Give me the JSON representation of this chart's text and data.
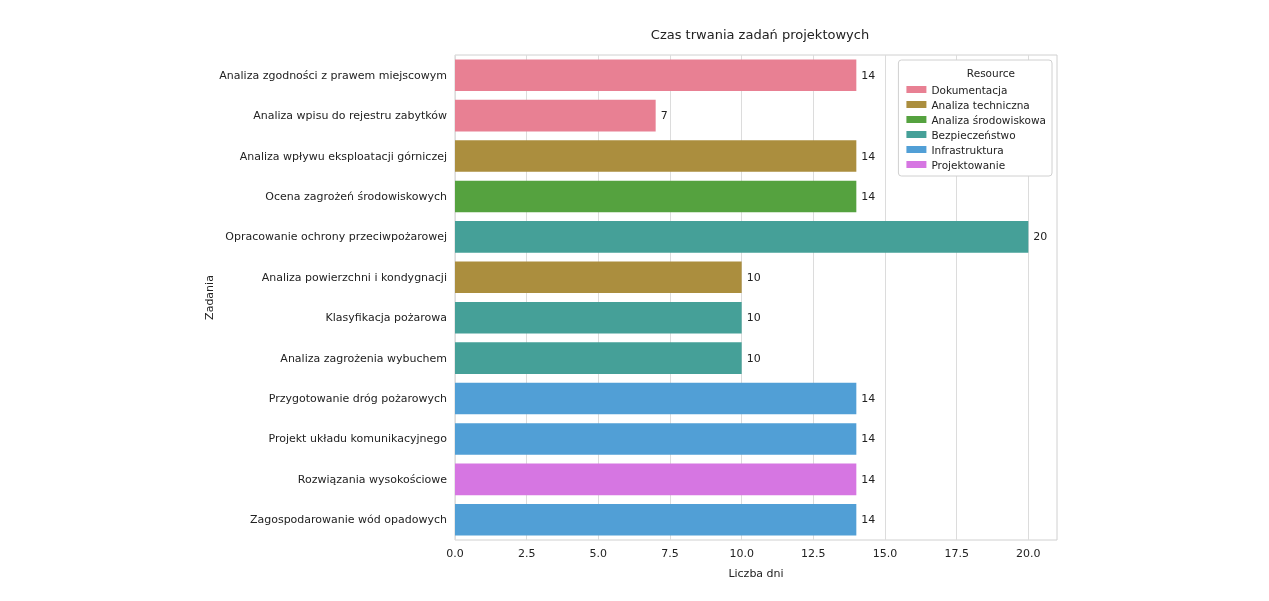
{
  "chart_data": {
    "type": "bar",
    "orientation": "horizontal",
    "stacked": true,
    "title": "Czas trwania zadań projektowych",
    "xlabel": "Liczba dni",
    "ylabel": "Zadania",
    "legend_title": "Resource",
    "categories": [
      "Analiza zgodności z prawem miejscowym",
      "Analiza wpisu do rejestru zabytków",
      "Analiza wpływu eksploatacji górniczej",
      "Ocena zagrożeń środowiskowych",
      "Opracowanie ochrony przeciwpożarowej",
      "Analiza powierzchni i kondygnacji",
      "Klasyfikacja pożarowa",
      "Analiza zagrożenia wybuchem",
      "Przygotowanie dróg pożarowych",
      "Projekt układu komunikacyjnego",
      "Rozwiązania wysokościowe",
      "Zagospodarowanie wód opadowych"
    ],
    "series": [
      {
        "name": "Dokumentacja",
        "color": "#e88093",
        "values": [
          14,
          7,
          null,
          null,
          null,
          null,
          null,
          null,
          null,
          null,
          null,
          null
        ]
      },
      {
        "name": "Analiza techniczna",
        "color": "#ab8e3e",
        "values": [
          null,
          null,
          14,
          null,
          null,
          10,
          null,
          null,
          null,
          null,
          null,
          null
        ]
      },
      {
        "name": "Analiza środowiskowa",
        "color": "#55a23f",
        "values": [
          null,
          null,
          null,
          14,
          null,
          null,
          null,
          null,
          null,
          null,
          null,
          null
        ]
      },
      {
        "name": "Bezpieczeństwo",
        "color": "#45a098",
        "values": [
          null,
          null,
          null,
          null,
          20,
          null,
          10,
          10,
          null,
          null,
          null,
          null
        ]
      },
      {
        "name": "Infrastruktura",
        "color": "#519fd6",
        "values": [
          null,
          null,
          null,
          null,
          null,
          null,
          null,
          null,
          14,
          14,
          null,
          14
        ]
      },
      {
        "name": "Projektowanie",
        "color": "#d676e2",
        "values": [
          null,
          null,
          null,
          null,
          null,
          null,
          null,
          null,
          null,
          null,
          14,
          null
        ]
      }
    ],
    "xlim": [
      0,
      21
    ],
    "xticks": [
      {
        "value": 0,
        "label": "0.0"
      },
      {
        "value": 2.5,
        "label": "2.5"
      },
      {
        "value": 5,
        "label": "5.0"
      },
      {
        "value": 7.5,
        "label": "7.5"
      },
      {
        "value": 10,
        "label": "10.0"
      },
      {
        "value": 12.5,
        "label": "12.5"
      },
      {
        "value": 15,
        "label": "15.0"
      },
      {
        "value": 17.5,
        "label": "17.5"
      },
      {
        "value": 20,
        "label": "20.0"
      }
    ],
    "grid": "x",
    "legend": "top right",
    "data_labels": true
  }
}
